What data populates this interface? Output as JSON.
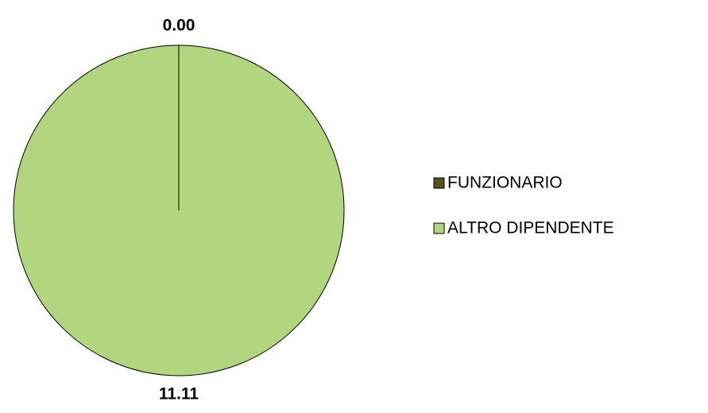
{
  "chart_data": {
    "type": "pie",
    "categories": [
      "FUNZIONARIO",
      "ALTRO DIPENDENTE"
    ],
    "values": [
      0,
      11.11
    ],
    "value_labels": [
      "0.00",
      "11.11"
    ],
    "colors": [
      "#55521a",
      "#b2d67f"
    ],
    "legend": "right"
  }
}
